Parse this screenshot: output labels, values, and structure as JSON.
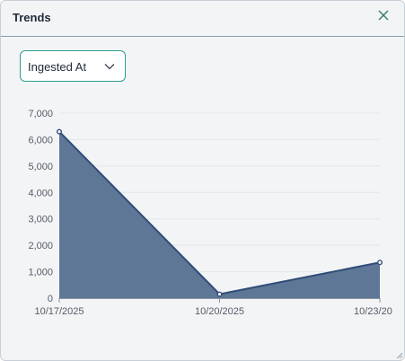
{
  "dialog": {
    "title": "Trends",
    "close_icon": "close-icon"
  },
  "filter": {
    "selected": "Ingested At",
    "icon": "chevron-down-icon"
  },
  "chart_data": {
    "type": "area",
    "title": "",
    "xlabel": "",
    "ylabel": "",
    "x": [
      "10/17/2025",
      "10/20/2025",
      "10/23/20"
    ],
    "series": [
      {
        "values": [
          6300,
          150,
          1350
        ]
      }
    ],
    "y_ticks": [
      "0",
      "1,000",
      "2,000",
      "3,000",
      "4,000",
      "5,000",
      "6,000",
      "7,000"
    ],
    "ylim": [
      0,
      7000
    ],
    "grid": true,
    "colors": {
      "fill": "#5e7796",
      "line": "#2f4d78",
      "grid": "#e3e6ea"
    }
  }
}
